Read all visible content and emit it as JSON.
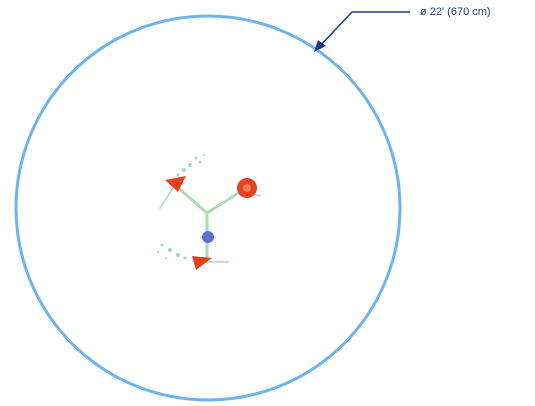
{
  "annotation": {
    "label": "ø 22' (670 cm)"
  }
}
